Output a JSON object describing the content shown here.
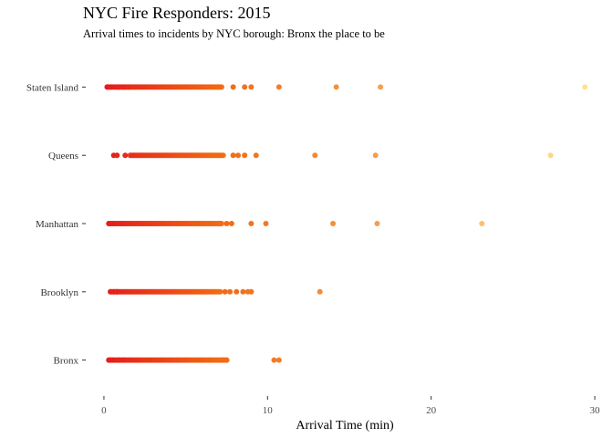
{
  "chart_data": {
    "type": "scatter",
    "title": "NYC Fire Responders: 2015",
    "subtitle": "Arrival times to incidents by NYC borough: Bronx the place to be",
    "xlabel": "Arrival Time (min)",
    "ylabel": "",
    "xlim": [
      -1,
      30.5
    ],
    "xticks": [
      0,
      10,
      20,
      30
    ],
    "grid": false,
    "legend": "none",
    "categories": [
      "Bronx",
      "Brooklyn",
      "Manhattan",
      "Queens",
      "Staten Island"
    ],
    "color_scale": {
      "low": "#e41a1c",
      "mid": "#f16913",
      "high": "#fee391"
    },
    "series": [
      {
        "category": "Bronx",
        "dense_range": [
          0.3,
          7.5
        ],
        "x": [
          0.3,
          0.5,
          0.9,
          1.2,
          7.3,
          7.5,
          10.4,
          10.7
        ]
      },
      {
        "category": "Brooklyn",
        "dense_range": [
          0.4,
          7.0
        ],
        "x": [
          0.4,
          0.6,
          0.8,
          7.1,
          7.4,
          7.7,
          8.1,
          8.5,
          8.8,
          9.0,
          13.2
        ]
      },
      {
        "category": "Manhattan",
        "dense_range": [
          0.3,
          7.2
        ],
        "x": [
          0.3,
          0.5,
          1.0,
          1.3,
          7.1,
          7.5,
          7.8,
          9.0,
          9.9,
          14.0,
          16.7,
          23.1
        ]
      },
      {
        "category": "Queens",
        "dense_range": [
          1.6,
          7.3
        ],
        "x": [
          0.6,
          0.8,
          1.3,
          7.9,
          8.2,
          8.6,
          9.3,
          12.9,
          16.6,
          27.3
        ]
      },
      {
        "category": "Staten Island",
        "dense_range": [
          0.2,
          7.2
        ],
        "x": [
          0.2,
          0.4,
          0.9,
          1.2,
          1.5,
          7.0,
          7.9,
          8.6,
          9.0,
          10.7,
          14.2,
          16.9,
          29.4
        ]
      }
    ]
  }
}
